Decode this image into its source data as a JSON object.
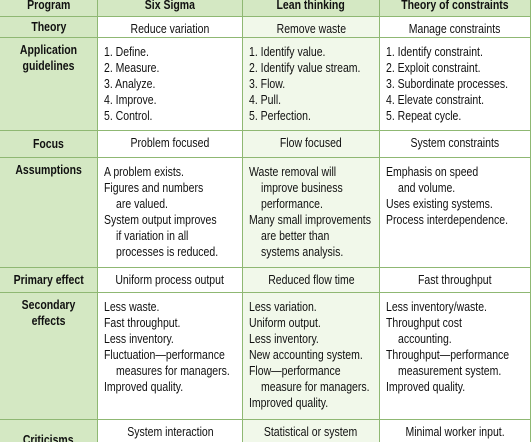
{
  "table": {
    "header": [
      "Program",
      "Six Sigma",
      "Lean thinking",
      "Theory of constraints"
    ],
    "rows": [
      {
        "label": "Theory",
        "cells": [
          [
            [
              "Reduce variation"
            ]
          ],
          [
            [
              "Remove waste"
            ]
          ],
          [
            [
              "Manage constraints"
            ]
          ]
        ]
      },
      {
        "label": "Application guidelines",
        "cells": [
          [
            [
              "1. Define."
            ],
            [
              "2. Measure."
            ],
            [
              "3. Analyze."
            ],
            [
              "4. Improve."
            ],
            [
              "5. Control."
            ]
          ],
          [
            [
              "1. Identify value."
            ],
            [
              "2. Identify value stream."
            ],
            [
              "3. Flow."
            ],
            [
              "4. Pull."
            ],
            [
              "5. Perfection."
            ]
          ],
          [
            [
              "1. Identify constraint."
            ],
            [
              "2. Exploit constraint."
            ],
            [
              "3. Subordinate processes."
            ],
            [
              "4. Elevate constraint."
            ],
            [
              "5. Repeat cycle."
            ]
          ]
        ]
      },
      {
        "label": "Focus",
        "cells": [
          [
            [
              "Problem focused"
            ]
          ],
          [
            [
              "Flow focused"
            ]
          ],
          [
            [
              "System constraints"
            ]
          ]
        ]
      },
      {
        "label": "Assumptions",
        "cells": [
          [
            [
              "A problem exists."
            ],
            [
              "Figures and numbers",
              "are valued."
            ],
            [
              "System output improves",
              "if variation in all",
              "processes is reduced."
            ]
          ],
          [
            [
              "Waste removal will",
              "improve business",
              "performance."
            ],
            [
              "Many small improvements",
              "are better than",
              "systems analysis."
            ]
          ],
          [
            [
              "Emphasis on speed",
              "and volume."
            ],
            [
              "Uses existing systems."
            ],
            [
              "Process interdependence."
            ]
          ]
        ]
      },
      {
        "label": "Primary effect",
        "cells": [
          [
            [
              "Uniform process output"
            ]
          ],
          [
            [
              "Reduced flow time"
            ]
          ],
          [
            [
              "Fast throughput"
            ]
          ]
        ]
      },
      {
        "label": "Secondary effects",
        "cells": [
          [
            [
              "Less waste."
            ],
            [
              "Fast throughput."
            ],
            [
              "Less inventory."
            ],
            [
              "Fluctuation—performance",
              "measures for managers."
            ],
            [
              "Improved quality."
            ]
          ],
          [
            [
              "Less variation."
            ],
            [
              "Uniform output."
            ],
            [
              "Less inventory."
            ],
            [
              "New accounting system."
            ],
            [
              "Flow—performance",
              "measure for managers."
            ],
            [
              "Improved quality."
            ]
          ],
          [
            [
              "Less inventory/waste."
            ],
            [
              "Throughput cost",
              "accounting."
            ],
            [
              "Throughput—performance",
              "measurement system."
            ],
            [
              "Improved quality."
            ]
          ]
        ]
      },
      {
        "label": "Criticisms",
        "cells": [
          [
            [
              "System interaction"
            ]
          ],
          [
            [
              "Statistical or system"
            ]
          ],
          [
            [
              "Minimal worker input."
            ]
          ]
        ]
      }
    ]
  }
}
